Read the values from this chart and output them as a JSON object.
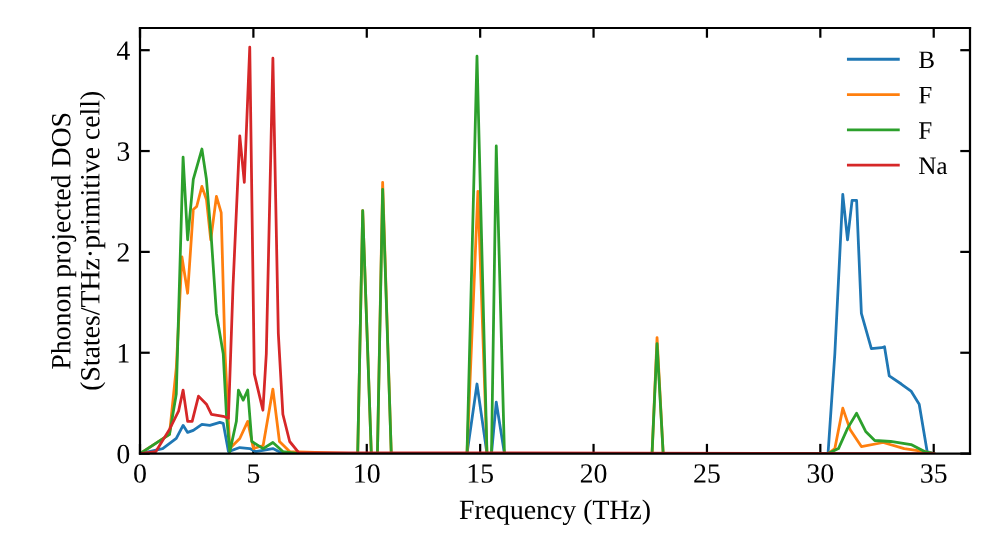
{
  "chart_data": {
    "type": "line",
    "xlabel": "Frequency (THz)",
    "ylabel": "Phonon projected DOS\n(States/THz·primitive cell)",
    "xlim": [
      0,
      36.6
    ],
    "ylim": [
      0,
      4.22
    ],
    "xticks": [
      0,
      5,
      10,
      15,
      20,
      25,
      30,
      35
    ],
    "yticks": [
      0,
      1,
      2,
      3,
      4
    ],
    "grid": false,
    "legend": "top right",
    "marker": "none",
    "line_style": "solid",
    "series": [
      {
        "name": "B",
        "color": "#1f77b4",
        "x": [
          0,
          1.0,
          1.6,
          1.9,
          2.1,
          2.35,
          2.73,
          3.08,
          3.52,
          3.67,
          3.9,
          4.4,
          4.84,
          5.1,
          5.86,
          6.3,
          14.42,
          14.86,
          15.3,
          15.5,
          15.71,
          16.07,
          30.34,
          30.64,
          30.99,
          31.2,
          31.4,
          31.6,
          31.81,
          32.25,
          32.7,
          32.83,
          33.04,
          33.57,
          34.0,
          34.36,
          34.71,
          35
        ],
        "values": [
          0,
          0.05,
          0.15,
          0.28,
          0.21,
          0.23,
          0.29,
          0.28,
          0.31,
          0.3,
          0.02,
          0.06,
          0.05,
          0.02,
          0.05,
          0,
          0,
          0.69,
          0,
          0,
          0.51,
          0,
          0,
          0.99,
          2.57,
          2.12,
          2.51,
          2.51,
          1.39,
          1.04,
          1.05,
          1.06,
          0.77,
          0.69,
          0.62,
          0.49,
          0.02,
          0
        ]
      },
      {
        "name": "F",
        "color": "#ff7f0e",
        "x": [
          0,
          1.3,
          1.6,
          1.85,
          2.1,
          2.35,
          2.5,
          2.73,
          2.93,
          3.12,
          3.37,
          3.58,
          3.75,
          3.96,
          4.4,
          4.75,
          5.0,
          5.43,
          5.86,
          6.15,
          6.6,
          9.6,
          9.82,
          10.2,
          10.47,
          10.7,
          11.08,
          14.42,
          14.9,
          15.3,
          22.58,
          22.8,
          23.07,
          30.34,
          30.64,
          30.99,
          31.31,
          31.81,
          32.77,
          33.7,
          34.6,
          35
        ],
        "values": [
          0,
          0.19,
          0.85,
          1.95,
          1.59,
          2.42,
          2.45,
          2.65,
          2.52,
          2.12,
          2.55,
          2.39,
          0.99,
          0.05,
          0.15,
          0.32,
          0.05,
          0.08,
          0.64,
          0.12,
          0.02,
          0,
          2.41,
          0,
          0,
          2.69,
          0,
          0,
          2.6,
          0,
          0,
          1.15,
          0,
          0,
          0.05,
          0.45,
          0.24,
          0.07,
          0.11,
          0.05,
          0.02,
          0
        ]
      },
      {
        "name": "F",
        "color": "#2ca02c",
        "x": [
          0,
          1.3,
          1.6,
          1.9,
          2.1,
          2.35,
          2.73,
          2.93,
          3.15,
          3.37,
          3.67,
          3.81,
          3.96,
          4.25,
          4.34,
          4.55,
          4.75,
          4.93,
          5.43,
          5.86,
          6.3,
          7.0,
          9.6,
          9.82,
          10.2,
          10.47,
          10.7,
          11.08,
          14.42,
          14.86,
          15.3,
          15.5,
          15.71,
          16.07,
          22.58,
          22.8,
          23.07,
          30.34,
          30.8,
          31.2,
          31.6,
          32.0,
          32.4,
          33.1,
          34.0,
          34.6,
          35
        ],
        "values": [
          0,
          0.19,
          0.59,
          2.94,
          2.12,
          2.72,
          3.02,
          2.72,
          2.12,
          1.39,
          0.99,
          0.39,
          0.02,
          0.32,
          0.63,
          0.53,
          0.63,
          0.12,
          0.05,
          0.11,
          0.02,
          0,
          0,
          2.41,
          0,
          0,
          2.62,
          0,
          0,
          3.94,
          0,
          0,
          3.05,
          0,
          0,
          1.09,
          0,
          0,
          0.05,
          0.25,
          0.4,
          0.22,
          0.13,
          0.12,
          0.09,
          0.02,
          0
        ]
      },
      {
        "name": "Na",
        "color": "#d62728",
        "x": [
          0,
          0.7,
          1.3,
          1.7,
          1.9,
          2.1,
          2.3,
          2.58,
          2.93,
          3.15,
          3.67,
          3.9,
          4.1,
          4.4,
          4.6,
          4.84,
          5.04,
          5.42,
          5.57,
          5.86,
          6.1,
          6.3,
          6.6,
          7.0,
          35
        ],
        "values": [
          0,
          0.02,
          0.24,
          0.42,
          0.63,
          0.32,
          0.32,
          0.57,
          0.49,
          0.39,
          0.37,
          0.35,
          1.65,
          3.15,
          2.69,
          4.03,
          0.79,
          0.43,
          0.99,
          3.92,
          1.19,
          0.39,
          0.12,
          0.01,
          0
        ]
      }
    ]
  }
}
